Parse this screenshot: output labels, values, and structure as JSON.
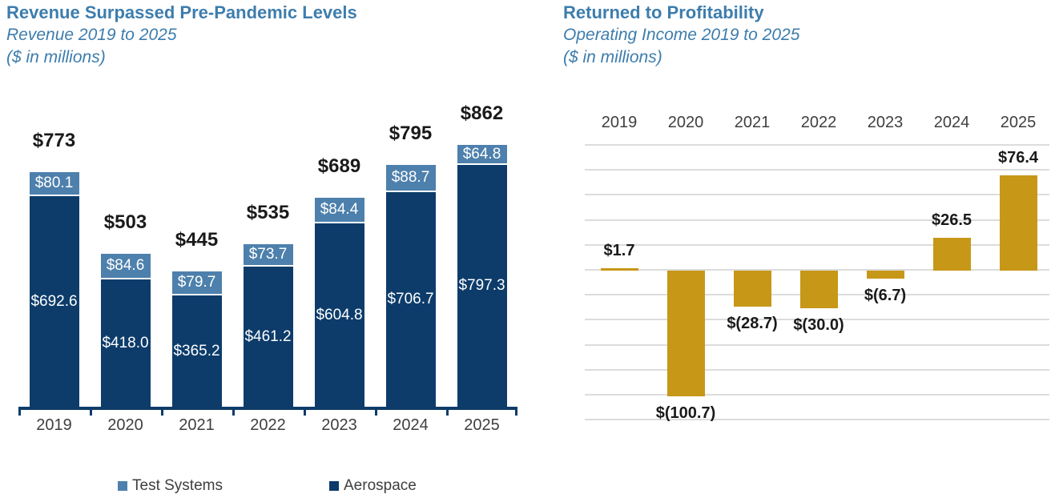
{
  "colors": {
    "title_blue": "#3d7dad",
    "navy": "#0d3c6a",
    "light_blue": "#4d80ac",
    "gold": "#c79718",
    "gridline_gray": "#dcdcdc",
    "value_text": "#1a1a1a",
    "axis_text": "#3f3f3f"
  },
  "chart_data": [
    {
      "type": "bar",
      "stacked": true,
      "title": "Revenue Surpassed Pre-Pandemic Levels",
      "subtitle": "Revenue 2019 to 2025",
      "units_label": "($ in millions)",
      "categories": [
        "2019",
        "2020",
        "2021",
        "2022",
        "2023",
        "2024",
        "2025"
      ],
      "series": [
        {
          "name": "Test Systems",
          "color": "#4d80ac",
          "values": [
            80.1,
            84.6,
            79.7,
            73.7,
            84.4,
            88.7,
            64.8
          ],
          "labels": [
            "$80.1",
            "$84.6",
            "$79.7",
            "$73.7",
            "$84.4",
            "$88.7",
            "$64.8"
          ]
        },
        {
          "name": "Aerospace",
          "color": "#0d3c6a",
          "values": [
            692.6,
            418.0,
            365.2,
            461.2,
            604.8,
            706.7,
            797.3
          ],
          "labels": [
            "$692.6",
            "$418.0",
            "$365.2",
            "$461.2",
            "$604.8",
            "$706.7",
            "$797.3"
          ]
        }
      ],
      "totals": [
        773,
        503,
        445,
        535,
        689,
        795,
        862
      ],
      "total_labels": [
        "$773",
        "$503",
        "$445",
        "$535",
        "$689",
        "$795",
        "$862"
      ],
      "legend": [
        {
          "label": "Test Systems",
          "color": "#4d80ac"
        },
        {
          "label": "Aerospace",
          "color": "#0d3c6a"
        }
      ],
      "ylim": [
        0,
        880
      ],
      "grid": false,
      "legend_position": "bottom"
    },
    {
      "type": "bar",
      "stacked": false,
      "title": "Returned to Profitability",
      "subtitle": "Operating Income 2019 to 2025",
      "units_label": "($ in millions)",
      "categories": [
        "2019",
        "2020",
        "2021",
        "2022",
        "2023",
        "2024",
        "2025"
      ],
      "values": [
        1.7,
        -100.7,
        -28.7,
        -30.0,
        -6.7,
        26.5,
        76.4
      ],
      "value_labels": [
        "$1.7",
        "$(100.7)",
        "$(28.7)",
        "$(30.0)",
        "$(6.7)",
        "$26.5",
        "$76.4"
      ],
      "bar_color": "#c79718",
      "ylim": [
        -120,
        100
      ],
      "gridline_step": 20,
      "grid": true,
      "category_label_position": "top",
      "legend_position": "none"
    }
  ]
}
